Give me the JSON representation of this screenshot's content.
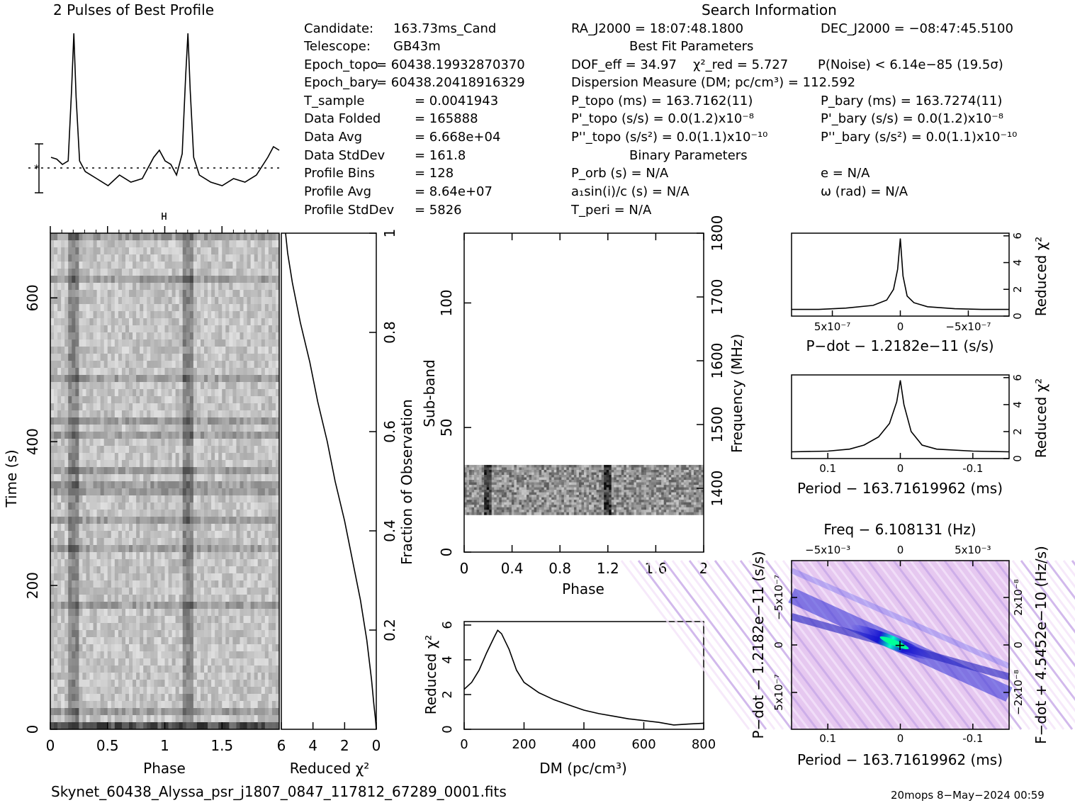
{
  "title_profile": "2 Pulses of Best Profile",
  "title_search": "Search Information",
  "info_left": [
    {
      "label": "Candidate:",
      "value": "163.73ms_Cand"
    },
    {
      "label": "Telescope:",
      "value": "GB43m"
    },
    {
      "label": "Epoch_topo",
      "value": "= 60438.19932870370"
    },
    {
      "label": "Epoch_bary",
      "value": "= 60438.20418916329"
    },
    {
      "label": "T_sample",
      "value": "0.0041943"
    },
    {
      "label": "Data Folded",
      "value": "165888"
    },
    {
      "label": "Data Avg",
      "value": "6.668e+04"
    },
    {
      "label": "Data StdDev",
      "value": "161.8"
    },
    {
      "label": "Profile Bins",
      "value": "128"
    },
    {
      "label": "Profile Avg",
      "value": "8.64e+07"
    },
    {
      "label": "Profile StdDev",
      "value": "5826"
    }
  ],
  "info_mid": {
    "ra": "RA_J2000 = 18:07:48.1800",
    "dec": "DEC_J2000 = −08:47:45.5100",
    "best_fit_heading": "Best Fit Parameters",
    "dof": "DOF_eff = 34.97",
    "chi2": "χ²_red = 5.727",
    "pnoise": "P(Noise) < 6.14e−85  (19.5σ)",
    "dm_line": "Dispersion Measure (DM; pc/cm³) = 112.592",
    "ptopo": "P_topo (ms) =  163.7162(11)",
    "pbary": "P_bary (ms) =  163.7274(11)",
    "pdtopo": "P'_topo (s/s) = 0.0(1.2)x10⁻⁸",
    "pdbary": "P'_bary (s/s) = 0.0(1.2)x10⁻⁸",
    "pddtopo": "P''_topo (s/s²) = 0.0(1.1)x10⁻¹⁰",
    "pddbary": "P''_bary (s/s²) = 0.0(1.1)x10⁻¹⁰",
    "binary_heading": "Binary Parameters",
    "porb": "P_orb (s) = N/A",
    "e": "e = N/A",
    "a1": "a₁sin(i)/c (s) = N/A",
    "omega": "ω (rad) = N/A",
    "tperi": "T_peri = N/A"
  },
  "labels": {
    "phase": "Phase",
    "time": "Time (s)",
    "reduced_chi2": "Reduced χ²",
    "fraction": "Fraction of Observation",
    "subband": "Sub-band",
    "frequency": "Frequency (MHz)",
    "dm": "DM (pc/cm³)",
    "pdot_title": "P−dot − 1.2182e−11 (s/s)",
    "period_title": "Period − 163.71619962 (ms)",
    "freq_title": "Freq − 6.108131 (Hz)",
    "pdot_axis": "P−dot − 1.2182e−11 (s/s)",
    "fdot_axis": "F−dot + 4.5452e−10 (Hz/s)"
  },
  "footer_file": "Skynet_60438_Alyssa_psr_j1807_0847_117812_67289_0001.fits",
  "footer_right": "20mops   8−May−2024 00:59",
  "chart_data": [
    {
      "type": "line",
      "name_key": "profile",
      "title": "2 Pulses of Best Profile",
      "xlim": [
        0,
        2
      ],
      "x": [
        0.0,
        0.05,
        0.1,
        0.15,
        0.18,
        0.2,
        0.22,
        0.25,
        0.3,
        0.4,
        0.5,
        0.6,
        0.7,
        0.8,
        0.9,
        0.95,
        1.0,
        1.05,
        1.1,
        1.15,
        1.18,
        1.2,
        1.22,
        1.25,
        1.3,
        1.4,
        1.5,
        1.6,
        1.7,
        1.8,
        1.9,
        1.95,
        2.0
      ],
      "y": [
        0.3,
        0.25,
        0.1,
        0.2,
        2.2,
        3.8,
        2.0,
        0.2,
        -0.1,
        -0.3,
        -0.5,
        -0.2,
        -0.4,
        -0.3,
        0.3,
        0.5,
        0.2,
        0.1,
        -0.2,
        0.4,
        2.6,
        3.8,
        2.2,
        0.3,
        -0.2,
        -0.4,
        -0.5,
        -0.3,
        -0.4,
        -0.2,
        0.3,
        0.6,
        0.5
      ]
    },
    {
      "type": "heatmap",
      "name_key": "time_phase",
      "xlabel": "Phase",
      "ylabel": "Time (s)",
      "xlim": [
        0,
        2
      ],
      "ylim": [
        0,
        690
      ],
      "xticks": [
        0,
        0.5,
        1,
        1.5
      ],
      "yticks": [
        0,
        200,
        400,
        600
      ],
      "pulse_phases": [
        0.2,
        1.2
      ]
    },
    {
      "type": "line",
      "name_key": "chi2_vs_fraction",
      "xlabel": "Reduced χ²",
      "ylabel": "Fraction of Observation",
      "xlim": [
        6,
        0
      ],
      "ylim": [
        0,
        1
      ],
      "xticks": [
        6,
        4,
        2,
        0
      ],
      "yticks": [
        0.2,
        0.4,
        0.6,
        0.8,
        1
      ],
      "x": [
        0.0,
        0.05,
        0.15,
        0.3,
        0.6,
        1.0,
        1.5,
        2.0,
        2.6,
        3.1,
        3.7,
        4.2,
        4.8,
        5.3,
        5.6,
        5.73
      ],
      "y": [
        0.0,
        0.02,
        0.05,
        0.1,
        0.18,
        0.26,
        0.34,
        0.42,
        0.5,
        0.58,
        0.66,
        0.74,
        0.82,
        0.9,
        0.96,
        1.0
      ]
    },
    {
      "type": "heatmap",
      "name_key": "subband_phase",
      "xlabel": "Phase",
      "ylabel": "Sub-band",
      "y2label": "Frequency (MHz)",
      "xlim": [
        0,
        2
      ],
      "ylim": [
        0,
        128
      ],
      "y2lim": [
        1300,
        1800
      ],
      "xticks": [
        0,
        0.4,
        0.8,
        1.2,
        1.6,
        2
      ],
      "yticks": [
        0,
        50,
        100
      ],
      "y2ticks": [
        1400,
        1500,
        1600,
        1700,
        1800
      ],
      "data_subband_range": [
        15,
        35
      ],
      "pulse_phases": [
        0.2,
        1.2
      ]
    },
    {
      "type": "line",
      "name_key": "dm_curve",
      "xlabel": "DM (pc/cm³)",
      "ylabel": "Reduced χ²",
      "xlim": [
        0,
        800
      ],
      "ylim": [
        0,
        6.2
      ],
      "xticks": [
        0,
        200,
        400,
        600,
        800
      ],
      "yticks": [
        0,
        2,
        4,
        6
      ],
      "x": [
        0,
        25,
        50,
        75,
        100,
        112,
        125,
        150,
        175,
        200,
        250,
        300,
        350,
        400,
        450,
        500,
        550,
        600,
        650,
        700,
        750,
        800
      ],
      "y": [
        2.3,
        2.7,
        3.4,
        4.4,
        5.3,
        5.7,
        5.5,
        4.6,
        3.4,
        2.7,
        2.1,
        1.7,
        1.4,
        1.1,
        0.9,
        0.75,
        0.6,
        0.5,
        0.4,
        0.25,
        0.3,
        0.35
      ]
    },
    {
      "type": "line",
      "name_key": "pdot_curve",
      "title": "P−dot − 1.2182e−11 (s/s)",
      "ylabel": "Reduced χ²",
      "xlim": [
        8e-07,
        -8e-07
      ],
      "ylim": [
        0,
        6.2
      ],
      "xticks": [
        5e-07,
        0,
        -5e-07
      ],
      "xtick_labels": [
        "5x10⁻⁷",
        "0",
        "−5x10⁻⁷"
      ],
      "yticks": [
        0,
        2,
        4,
        6
      ],
      "x": [
        8e-07,
        6e-07,
        4e-07,
        2e-07,
        1e-07,
        5e-08,
        2e-08,
        0,
        -2e-08,
        -5e-08,
        -1e-07,
        -2e-07,
        -4e-07,
        -6e-07,
        -8e-07
      ],
      "y": [
        0.5,
        0.5,
        0.6,
        0.8,
        1.2,
        2.0,
        3.5,
        5.8,
        3.0,
        1.5,
        1.0,
        0.7,
        0.55,
        0.5,
        0.5
      ]
    },
    {
      "type": "line",
      "name_key": "period_curve",
      "title": "Period − 163.71619962 (ms)",
      "ylabel": "Reduced χ²",
      "xlim": [
        0.15,
        -0.15
      ],
      "ylim": [
        0,
        6.2
      ],
      "xticks": [
        0.1,
        0,
        -0.1
      ],
      "yticks": [
        0,
        2,
        4,
        6
      ],
      "x": [
        0.15,
        0.1,
        0.07,
        0.05,
        0.03,
        0.015,
        0.005,
        0,
        -0.005,
        -0.015,
        -0.03,
        -0.05,
        -0.1,
        -0.15
      ],
      "y": [
        0.5,
        0.55,
        0.7,
        1.0,
        1.6,
        2.6,
        4.2,
        5.8,
        4.0,
        2.0,
        1.0,
        0.7,
        0.55,
        0.5
      ]
    },
    {
      "type": "heatmap",
      "name_key": "period_pdot",
      "title": "Freq − 6.108131 (Hz)",
      "xlabel": "Period − 163.71619962 (ms)",
      "ylabel": "P−dot − 1.2182e−11 (s/s)",
      "y2label": "F−dot + 4.5452e−10 (Hz/s)",
      "xlim": [
        0.15,
        -0.15
      ],
      "ylim": [
        8e-07,
        -8e-07
      ],
      "xticks": [
        0.1,
        0,
        -0.1
      ],
      "x2tick_labels": [
        "−5x10⁻³",
        "0",
        "5x10⁻³"
      ],
      "ytick_labels": [
        "−5x10⁻⁷",
        "0",
        "5x10⁻⁷"
      ],
      "y2tick_labels": [
        "2x10⁻⁸",
        "0",
        "−2x10⁻⁸"
      ]
    }
  ]
}
